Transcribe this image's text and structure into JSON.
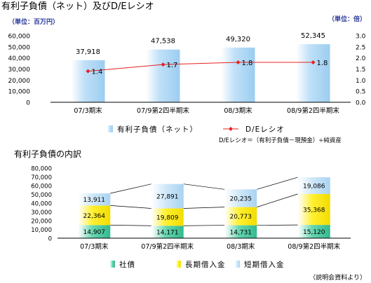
{
  "chart_data": [
    {
      "type": "bar",
      "title": "有利子負債（ネット）及びD/Eレシオ",
      "unit_left": "（単位：百万円）",
      "unit_right": "（単位：倍）",
      "categories": [
        "07/3期末",
        "07/9第2四半期末",
        "08/3期末",
        "08/9第2四半期末"
      ],
      "ylim": [
        0,
        60000
      ],
      "yticks": [
        "0",
        "10,000",
        "20,000",
        "30,000",
        "40,000",
        "50,000",
        "60,000"
      ],
      "y2lim": [
        0,
        3.0
      ],
      "y2ticks": [
        "0.0",
        "0.5",
        "1.0",
        "1.5",
        "2.0",
        "2.5",
        "3.0"
      ],
      "series": [
        {
          "name": "有利子負債（ネット）",
          "type": "bar",
          "values": [
            37918,
            47538,
            49320,
            52345
          ],
          "labels": [
            "37,918",
            "47,538",
            "49,320",
            "52,345"
          ]
        },
        {
          "name": "D/Eレシオ",
          "type": "line",
          "axis": "right",
          "values": [
            1.4,
            1.7,
            1.8,
            1.8
          ],
          "labels": [
            "1.4",
            "1.7",
            "1.8",
            "1.8"
          ]
        }
      ],
      "note": "D/Eレシオ＝（有利子負債－現預金）÷純資産",
      "colors": {
        "bar": "#bfe0f8",
        "line": "#e82020"
      },
      "legend": "bottom"
    },
    {
      "type": "bar",
      "stacked": true,
      "title": "有利子負債の内訳",
      "categories": [
        "07/3期末",
        "07/9第2四半期末",
        "08/3期末",
        "08/9第2四半期末"
      ],
      "ylim": [
        0,
        80000
      ],
      "yticks": [
        "0",
        "10,000",
        "20,000",
        "30,000",
        "40,000",
        "50,000",
        "60,000",
        "70,000",
        "80,000"
      ],
      "series": [
        {
          "name": "社債",
          "values": [
            14907,
            14171,
            14731,
            15120
          ],
          "labels": [
            "14,907",
            "14,171",
            "14,731",
            "15,120"
          ]
        },
        {
          "name": "長期借入金",
          "values": [
            22364,
            19809,
            20773,
            35368
          ],
          "labels": [
            "22,364",
            "19,809",
            "20,773",
            "35,368"
          ]
        },
        {
          "name": "短期借入金",
          "values": [
            13911,
            27891,
            20235,
            19086
          ],
          "labels": [
            "13,911",
            "27,891",
            "20,235",
            "19,086"
          ]
        }
      ],
      "colors": {
        "社債": "#66d6b0",
        "長期借入金": "#fff030",
        "短期借入金": "#cfe8f8"
      },
      "legend": "bottom"
    }
  ],
  "source": "（説明会資料より）"
}
